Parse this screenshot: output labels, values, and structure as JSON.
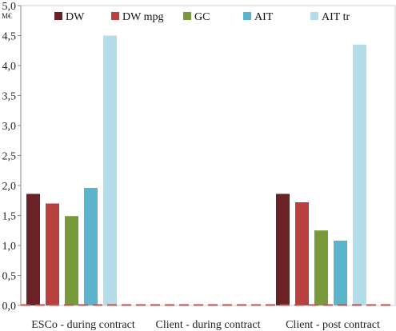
{
  "chart_data": {
    "type": "bar",
    "title": "",
    "xlabel": "",
    "ylabel": "M€",
    "ylim": [
      0,
      5
    ],
    "y_ticks": [
      "0,0",
      "0,5",
      "1,0",
      "1,5",
      "2,0",
      "2,5",
      "3,0",
      "3,5",
      "4,0",
      "4,5",
      "5,0"
    ],
    "y_tick_values": [
      0,
      0.5,
      1,
      1.5,
      2,
      2.5,
      3,
      3.5,
      4,
      4.5,
      5
    ],
    "grid": false,
    "legend_position": "top",
    "categories": [
      "ESCo - during contract",
      "Client - during contract",
      "Client - post contract"
    ],
    "series": [
      {
        "name": "DW",
        "color": "#6b2226",
        "values": [
          1.86,
          0,
          1.86
        ]
      },
      {
        "name": "DW mpg",
        "color": "#b8403f",
        "values": [
          1.7,
          0,
          1.72
        ]
      },
      {
        "name": "GC",
        "color": "#789a3b",
        "values": [
          1.49,
          0,
          1.25
        ]
      },
      {
        "name": "AIT",
        "color": "#5cb4cc",
        "values": [
          1.96,
          0,
          1.08
        ]
      },
      {
        "name": "AIT tr",
        "color": "#b5dde9",
        "values": [
          4.5,
          0,
          4.35
        ]
      }
    ]
  }
}
